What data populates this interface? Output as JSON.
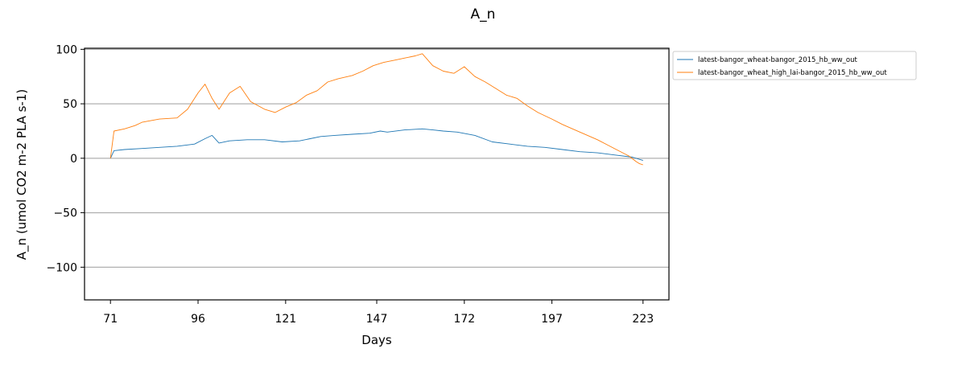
{
  "chart_data": {
    "type": "line",
    "title": "A_n",
    "xlabel": "Days",
    "ylabel": "A_n (umol CO2 m-2 PLA s-1)",
    "xlim": [
      63.6,
      230.4
    ],
    "ylim": [
      -130,
      101
    ],
    "x_ticks": [
      71,
      96,
      121,
      147,
      172,
      197,
      223
    ],
    "y_ticks": [
      -100,
      -50,
      0,
      50,
      100
    ],
    "y_tick_labels": [
      "−100",
      "−50",
      "0",
      "50",
      "100"
    ],
    "grid": "horizontal",
    "legend_position": "outside-right-top",
    "colors": {
      "series_1": "#1f77b4",
      "series_2": "#ff7f0e"
    },
    "series": [
      {
        "name": "latest-bangor_wheat-bangor_2015_hb_ww_out",
        "x": [
          71,
          72,
          75,
          80,
          85,
          90,
          95,
          98,
          100,
          102,
          105,
          110,
          115,
          120,
          125,
          128,
          131,
          135,
          140,
          145,
          148,
          150,
          155,
          160,
          163,
          166,
          170,
          175,
          180,
          185,
          190,
          195,
          200,
          205,
          210,
          215,
          220,
          223
        ],
        "y": [
          0,
          7,
          8,
          9,
          10,
          11,
          13,
          18,
          21,
          14,
          16,
          17,
          17,
          15,
          16,
          18,
          20,
          21,
          22,
          23,
          25,
          24,
          26,
          27,
          26,
          25,
          24,
          21,
          15,
          13,
          11,
          10,
          8,
          6,
          5,
          3,
          1,
          -2
        ]
      },
      {
        "name": "latest-bangor_wheat_high_lai-bangor_2015_hb_ww_out",
        "x": [
          71,
          72,
          75,
          78,
          80,
          85,
          90,
          93,
          96,
          98,
          100,
          102,
          105,
          108,
          111,
          115,
          118,
          121,
          124,
          127,
          130,
          133,
          136,
          140,
          143,
          146,
          149,
          152,
          155,
          158,
          160,
          163,
          166,
          169,
          172,
          175,
          178,
          181,
          184,
          187,
          190,
          193,
          197,
          200,
          205,
          210,
          213,
          216,
          219,
          221,
          222,
          223
        ],
        "y": [
          0,
          25,
          27,
          30,
          33,
          36,
          37,
          45,
          60,
          68,
          55,
          45,
          60,
          66,
          52,
          45,
          42,
          47,
          51,
          58,
          62,
          70,
          73,
          76,
          80,
          85,
          88,
          90,
          92,
          94,
          96,
          85,
          80,
          78,
          84,
          75,
          70,
          64,
          58,
          55,
          48,
          42,
          36,
          31,
          24,
          17,
          12,
          7,
          2,
          -3,
          -5,
          -6
        ]
      }
    ]
  }
}
